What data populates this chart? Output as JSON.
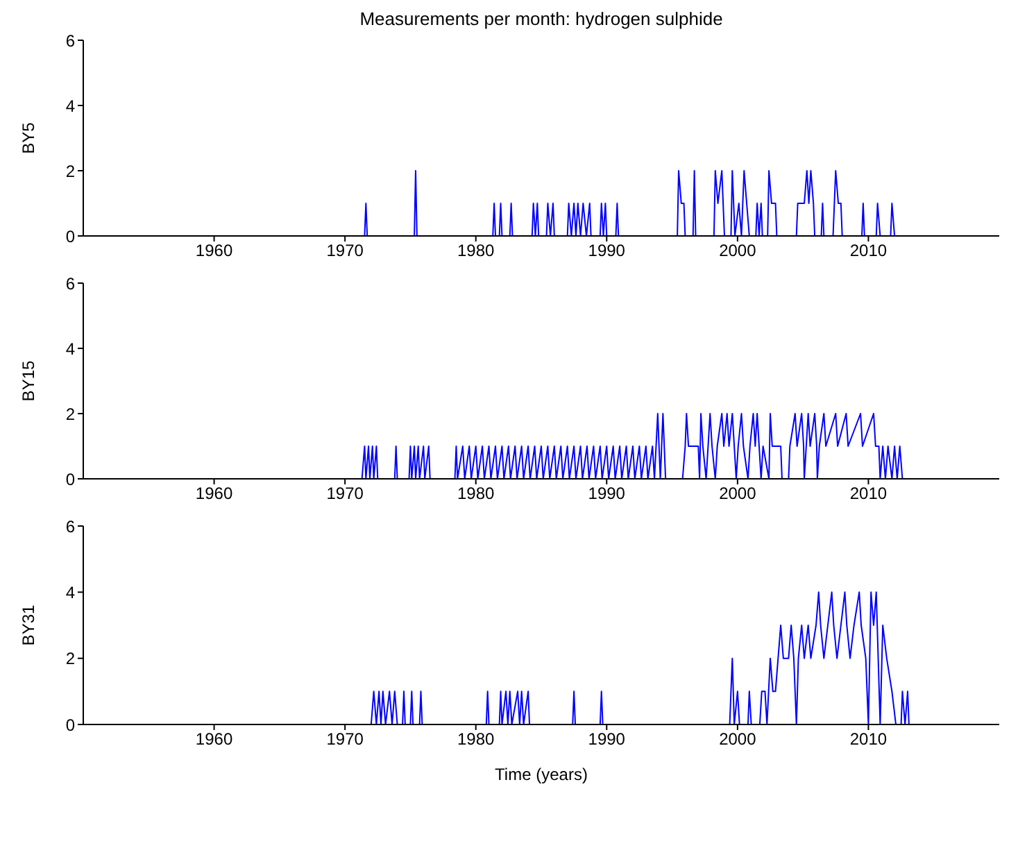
{
  "chart_data": [
    {
      "type": "line",
      "title": "Measurements per month: hydrogen sulphide",
      "ylabel": "BY5",
      "xlim": [
        1950,
        2020
      ],
      "xticks": [
        1960,
        1970,
        1980,
        1990,
        2000,
        2010
      ],
      "ylim": [
        0,
        6
      ],
      "yticks": [
        0,
        2,
        4,
        6
      ],
      "grid": false,
      "marker": "none",
      "series": [
        {
          "color": "#0000ff",
          "x": [
            1971.0,
            1971.5,
            1971.6,
            1971.7,
            1975.3,
            1975.4,
            1975.5,
            1981.3,
            1981.4,
            1981.5,
            1981.8,
            1981.9,
            1982.0,
            1982.6,
            1982.7,
            1982.8,
            1984.3,
            1984.4,
            1984.55,
            1984.7,
            1984.8,
            1985.4,
            1985.5,
            1985.7,
            1985.9,
            1986.0,
            1987.0,
            1987.1,
            1987.3,
            1987.5,
            1987.65,
            1987.8,
            1988.0,
            1988.2,
            1988.45,
            1988.7,
            1988.8,
            1989.5,
            1989.6,
            1989.75,
            1989.9,
            1990.0,
            1990.7,
            1990.8,
            1990.9,
            1995.4,
            1995.5,
            1995.7,
            1995.9,
            1996.0,
            1996.6,
            1996.7,
            1996.8,
            1998.2,
            1998.3,
            1998.5,
            1998.8,
            1999.0,
            1999.5,
            1999.6,
            1999.8,
            2000.1,
            2000.3,
            2000.5,
            2000.7,
            2000.9,
            2001.4,
            2001.5,
            2001.65,
            2001.8,
            2001.9,
            2002.3,
            2002.4,
            2002.6,
            2002.9,
            2003.0,
            2004.5,
            2004.6,
            2004.9,
            2005.1,
            2005.3,
            2005.45,
            2005.6,
            2005.8,
            2005.9,
            2006.4,
            2006.5,
            2006.6,
            2007.3,
            2007.5,
            2007.7,
            2007.9,
            2008.0,
            2009.5,
            2009.6,
            2009.7,
            2010.6,
            2010.7,
            2010.9,
            2011.7,
            2011.8,
            2012.0,
            2012.5
          ],
          "values": [
            0,
            0,
            1,
            0,
            0,
            2,
            0,
            0,
            1,
            0,
            0,
            1,
            0,
            0,
            1,
            0,
            0,
            1,
            0,
            1,
            0,
            0,
            1,
            0,
            1,
            0,
            0,
            1,
            0,
            1,
            0,
            1,
            0,
            1,
            0,
            1,
            0,
            0,
            1,
            0,
            1,
            0,
            0,
            1,
            0,
            0,
            2,
            1,
            1,
            0,
            0,
            2,
            0,
            0,
            2,
            1,
            2,
            0,
            0,
            2,
            0,
            1,
            0,
            2,
            1,
            0,
            0,
            1,
            0,
            1,
            0,
            0,
            2,
            1,
            1,
            0,
            0,
            1,
            1,
            1,
            2,
            1,
            2,
            1,
            0,
            0,
            1,
            0,
            0,
            2,
            1,
            1,
            0,
            0,
            1,
            0,
            0,
            1,
            0,
            0,
            1,
            0,
            0
          ]
        }
      ]
    },
    {
      "type": "line",
      "ylabel": "BY15",
      "xlim": [
        1950,
        2020
      ],
      "xticks": [
        1960,
        1970,
        1980,
        1990,
        2000,
        2010
      ],
      "ylim": [
        0,
        6
      ],
      "yticks": [
        0,
        2,
        4,
        6
      ],
      "grid": false,
      "marker": "none",
      "series": [
        {
          "color": "#0000ff",
          "x": [
            1971.3,
            1971.5,
            1971.6,
            1971.8,
            1971.9,
            1972.1,
            1972.2,
            1972.4,
            1972.5,
            1973.8,
            1973.9,
            1974.0,
            1974.9,
            1975.0,
            1975.1,
            1975.3,
            1975.4,
            1975.6,
            1975.7,
            1976.0,
            1976.1,
            1976.4,
            1976.5,
            1978.4,
            1978.5,
            1978.6,
            1979.0,
            1979.15,
            1979.5,
            1979.65,
            1980.0,
            1980.15,
            1980.5,
            1980.65,
            1981.0,
            1981.15,
            1981.5,
            1981.65,
            1982.0,
            1982.15,
            1982.5,
            1982.65,
            1983.0,
            1983.15,
            1983.5,
            1983.65,
            1984.0,
            1984.15,
            1984.5,
            1984.65,
            1985.0,
            1985.15,
            1985.5,
            1985.65,
            1986.0,
            1986.15,
            1986.5,
            1986.65,
            1987.0,
            1987.15,
            1987.5,
            1987.65,
            1988.0,
            1988.15,
            1988.5,
            1988.65,
            1989.0,
            1989.15,
            1989.5,
            1989.65,
            1990.0,
            1990.15,
            1990.5,
            1990.65,
            1991.0,
            1991.15,
            1991.5,
            1991.65,
            1992.0,
            1992.15,
            1992.5,
            1992.65,
            1993.0,
            1993.15,
            1993.5,
            1993.65,
            1993.9,
            1994.1,
            1994.3,
            1994.5,
            1995.8,
            1996.0,
            1996.1,
            1996.25,
            1997.0,
            1997.1,
            1997.2,
            1997.35,
            1997.6,
            1997.75,
            1997.9,
            1998.05,
            1998.3,
            1998.45,
            1998.8,
            1998.95,
            1999.2,
            1999.35,
            1999.6,
            1999.75,
            1999.9,
            2000.05,
            2000.3,
            2000.45,
            2000.8,
            2000.95,
            2001.2,
            2001.35,
            2001.5,
            2001.65,
            2001.8,
            2001.95,
            2002.4,
            2002.5,
            2002.65,
            2003.3,
            2003.4,
            2003.9,
            2004.0,
            2004.4,
            2004.55,
            2004.9,
            2005.05,
            2005.1,
            2005.25,
            2005.4,
            2005.55,
            2005.9,
            2006.05,
            2006.1,
            2006.25,
            2006.6,
            2006.75,
            2007.5,
            2007.65,
            2008.3,
            2008.45,
            2009.4,
            2009.55,
            2010.4,
            2010.55,
            2010.8,
            2010.9,
            2011.1,
            2011.3,
            2011.5,
            2011.8,
            2012.0,
            2012.2,
            2012.4,
            2012.6
          ],
          "values": [
            0,
            1,
            0,
            1,
            0,
            1,
            0,
            1,
            0,
            0,
            1,
            0,
            0,
            1,
            0,
            1,
            0,
            1,
            0,
            1,
            0,
            1,
            0,
            0,
            1,
            0,
            1,
            0,
            1,
            0,
            1,
            0,
            1,
            0,
            1,
            0,
            1,
            0,
            1,
            0,
            1,
            0,
            1,
            0,
            1,
            0,
            1,
            0,
            1,
            0,
            1,
            0,
            1,
            0,
            1,
            0,
            1,
            0,
            1,
            0,
            1,
            0,
            1,
            0,
            1,
            0,
            1,
            0,
            1,
            0,
            1,
            0,
            1,
            0,
            1,
            0,
            1,
            0,
            1,
            0,
            1,
            0,
            1,
            0,
            1,
            0,
            2,
            0,
            2,
            0,
            0,
            1,
            2,
            1,
            1,
            0,
            2,
            1,
            0,
            1,
            2,
            1,
            0,
            1,
            2,
            1,
            2,
            1,
            2,
            1,
            0,
            1,
            2,
            1,
            0,
            1,
            2,
            1,
            2,
            1,
            0,
            1,
            0,
            2,
            1,
            1,
            0,
            0,
            1,
            2,
            1,
            2,
            1,
            0,
            1,
            2,
            1,
            2,
            1,
            0,
            1,
            2,
            1,
            2,
            1,
            2,
            1,
            2,
            1,
            2,
            1,
            1,
            0,
            1,
            0,
            1,
            0,
            1,
            0,
            1,
            0
          ]
        }
      ]
    },
    {
      "type": "line",
      "ylabel": "BY31",
      "xlabel": "Time (years)",
      "xlim": [
        1950,
        2020
      ],
      "xticks": [
        1960,
        1970,
        1980,
        1990,
        2000,
        2010
      ],
      "ylim": [
        0,
        6
      ],
      "yticks": [
        0,
        2,
        4,
        6
      ],
      "grid": false,
      "marker": "none",
      "series": [
        {
          "color": "#0000ff",
          "x": [
            1972.0,
            1972.2,
            1972.4,
            1972.6,
            1972.75,
            1972.9,
            1973.1,
            1973.4,
            1973.6,
            1973.8,
            1974.0,
            1974.4,
            1974.5,
            1974.6,
            1975.0,
            1975.1,
            1975.2,
            1975.7,
            1975.8,
            1975.9,
            1980.8,
            1980.9,
            1981.0,
            1981.8,
            1981.9,
            1982.0,
            1982.3,
            1982.45,
            1982.6,
            1982.75,
            1983.2,
            1983.35,
            1983.5,
            1983.65,
            1984.0,
            1984.1,
            1987.4,
            1987.5,
            1987.6,
            1989.5,
            1989.6,
            1989.7,
            1999.4,
            1999.5,
            1999.6,
            1999.75,
            2000.0,
            2000.15,
            2000.8,
            2000.9,
            2001.05,
            2001.7,
            2001.85,
            2002.1,
            2002.25,
            2002.5,
            2002.7,
            2002.9,
            2003.1,
            2003.3,
            2003.5,
            2003.9,
            2004.1,
            2004.3,
            2004.5,
            2004.65,
            2004.9,
            2005.1,
            2005.4,
            2005.6,
            2006.0,
            2006.2,
            2006.35,
            2006.6,
            2006.9,
            2007.2,
            2007.35,
            2007.6,
            2007.9,
            2008.2,
            2008.35,
            2008.6,
            2008.9,
            2009.3,
            2009.45,
            2009.8,
            2010.0,
            2010.2,
            2010.4,
            2010.6,
            2010.75,
            2010.9,
            2011.1,
            2011.4,
            2011.8,
            2012.1,
            2012.5,
            2012.6,
            2012.8,
            2013.0,
            2013.1
          ],
          "values": [
            0,
            1,
            0,
            1,
            0,
            1,
            0,
            1,
            0,
            1,
            0,
            0,
            1,
            0,
            0,
            1,
            0,
            0,
            1,
            0,
            0,
            1,
            0,
            0,
            1,
            0,
            1,
            0,
            1,
            0,
            1,
            0,
            1,
            0,
            1,
            0,
            0,
            1,
            0,
            0,
            1,
            0,
            0,
            1,
            2,
            0,
            1,
            0,
            0,
            1,
            0,
            0,
            1,
            1,
            0,
            2,
            1,
            1,
            2,
            3,
            2,
            2,
            3,
            2,
            0,
            2,
            3,
            2,
            3,
            2,
            3,
            4,
            3,
            2,
            3,
            4,
            3,
            2,
            3,
            4,
            3,
            2,
            3,
            4,
            3,
            2,
            0,
            4,
            3,
            4,
            2,
            0,
            3,
            2,
            1,
            0,
            0,
            1,
            0,
            1,
            0
          ]
        }
      ]
    }
  ]
}
